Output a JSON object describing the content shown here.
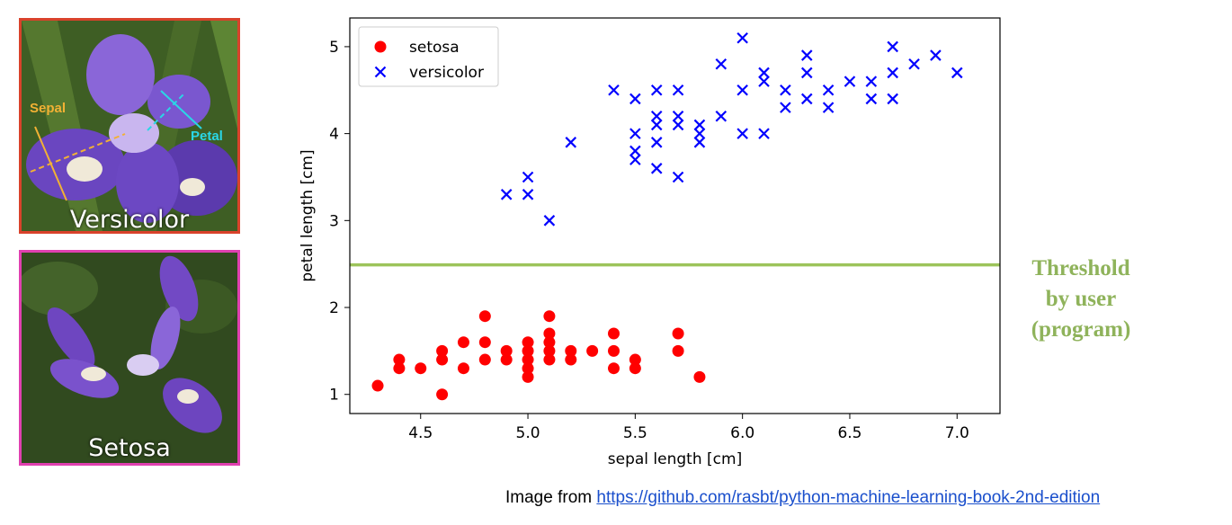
{
  "photos": {
    "versicolor": {
      "name": "Versicolor",
      "sepal_label": "Sepal",
      "petal_label": "Petal",
      "border_color": "#d9422b"
    },
    "setosa": {
      "name": "Setosa",
      "border_color": "#e040b0"
    }
  },
  "annotation": {
    "lines": [
      "Threshold",
      "by user",
      "(program)"
    ],
    "color": "#8fb35b"
  },
  "credit": {
    "prefix": "Image from ",
    "link_text": "https://github.com/rasbt/python-machine-learning-book-2nd-edition"
  },
  "chart_data": {
    "type": "scatter",
    "title": "",
    "xlabel": "sepal length [cm]",
    "ylabel": "petal length [cm]",
    "xlim": [
      4.17,
      7.2
    ],
    "ylim": [
      0.78,
      5.33
    ],
    "x_ticks": [
      "4.5",
      "5.0",
      "5.5",
      "6.0",
      "6.5",
      "7.0"
    ],
    "y_ticks": [
      "1",
      "2",
      "3",
      "4",
      "5"
    ],
    "legend_position": "top-left",
    "threshold": {
      "y": 2.49,
      "color": "#9cc45a"
    },
    "series": [
      {
        "name": "setosa",
        "marker": "circle",
        "color": "#ff0000",
        "points": [
          [
            4.3,
            1.1
          ],
          [
            4.4,
            1.3
          ],
          [
            4.4,
            1.4
          ],
          [
            4.5,
            1.3
          ],
          [
            4.6,
            1.0
          ],
          [
            4.6,
            1.4
          ],
          [
            4.6,
            1.5
          ],
          [
            4.7,
            1.3
          ],
          [
            4.7,
            1.6
          ],
          [
            4.8,
            1.4
          ],
          [
            4.8,
            1.6
          ],
          [
            4.8,
            1.9
          ],
          [
            4.9,
            1.4
          ],
          [
            4.9,
            1.5
          ],
          [
            5.0,
            1.2
          ],
          [
            5.0,
            1.3
          ],
          [
            5.0,
            1.4
          ],
          [
            5.0,
            1.5
          ],
          [
            5.0,
            1.6
          ],
          [
            5.1,
            1.4
          ],
          [
            5.1,
            1.5
          ],
          [
            5.1,
            1.6
          ],
          [
            5.1,
            1.7
          ],
          [
            5.1,
            1.9
          ],
          [
            5.2,
            1.4
          ],
          [
            5.2,
            1.5
          ],
          [
            5.3,
            1.5
          ],
          [
            5.4,
            1.3
          ],
          [
            5.4,
            1.5
          ],
          [
            5.4,
            1.7
          ],
          [
            5.5,
            1.3
          ],
          [
            5.5,
            1.4
          ],
          [
            5.7,
            1.5
          ],
          [
            5.7,
            1.7
          ],
          [
            5.8,
            1.2
          ]
        ]
      },
      {
        "name": "versicolor",
        "marker": "x",
        "color": "#0000ff",
        "points": [
          [
            4.9,
            3.3
          ],
          [
            5.0,
            3.3
          ],
          [
            5.0,
            3.5
          ],
          [
            5.1,
            3.0
          ],
          [
            5.2,
            3.9
          ],
          [
            5.4,
            4.5
          ],
          [
            5.5,
            3.7
          ],
          [
            5.5,
            3.8
          ],
          [
            5.5,
            4.0
          ],
          [
            5.5,
            4.4
          ],
          [
            5.6,
            3.6
          ],
          [
            5.6,
            3.9
          ],
          [
            5.6,
            4.1
          ],
          [
            5.6,
            4.2
          ],
          [
            5.6,
            4.5
          ],
          [
            5.7,
            3.5
          ],
          [
            5.7,
            4.1
          ],
          [
            5.7,
            4.2
          ],
          [
            5.7,
            4.5
          ],
          [
            5.8,
            3.9
          ],
          [
            5.8,
            4.0
          ],
          [
            5.8,
            4.1
          ],
          [
            5.9,
            4.2
          ],
          [
            5.9,
            4.8
          ],
          [
            6.0,
            4.0
          ],
          [
            6.0,
            4.5
          ],
          [
            6.0,
            5.1
          ],
          [
            6.1,
            4.0
          ],
          [
            6.1,
            4.6
          ],
          [
            6.1,
            4.7
          ],
          [
            6.2,
            4.3
          ],
          [
            6.2,
            4.5
          ],
          [
            6.3,
            4.4
          ],
          [
            6.3,
            4.7
          ],
          [
            6.3,
            4.9
          ],
          [
            6.4,
            4.3
          ],
          [
            6.4,
            4.5
          ],
          [
            6.5,
            4.6
          ],
          [
            6.6,
            4.4
          ],
          [
            6.6,
            4.6
          ],
          [
            6.7,
            4.4
          ],
          [
            6.7,
            4.7
          ],
          [
            6.7,
            5.0
          ],
          [
            6.8,
            4.8
          ],
          [
            6.9,
            4.9
          ],
          [
            7.0,
            4.7
          ]
        ]
      }
    ]
  }
}
